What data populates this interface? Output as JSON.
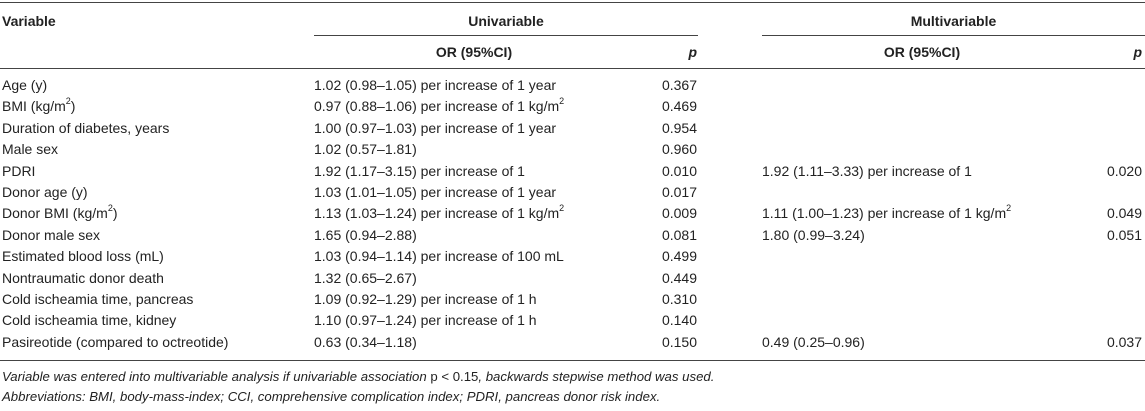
{
  "headers": {
    "variable": "Variable",
    "univariable": "Univariable",
    "multivariable": "Multivariable",
    "or_ci": "OR (95%CI)",
    "p": "p"
  },
  "rows": [
    {
      "variable": "Age (y)",
      "uni_or": "1.02 (0.98–1.05) per increase of 1 year",
      "uni_p": "0.367",
      "multi_or": "",
      "multi_p": ""
    },
    {
      "variable": "BMI (kg/m",
      "variable_sup": "2",
      "variable_after": ")",
      "uni_or": "0.97 (0.88–1.06) per increase of 1 kg/m",
      "uni_or_sup": "2",
      "uni_p": "0.469",
      "multi_or": "",
      "multi_p": ""
    },
    {
      "variable": "Duration of diabetes, years",
      "uni_or": "1.00 (0.97–1.03) per increase of 1 year",
      "uni_p": "0.954",
      "multi_or": "",
      "multi_p": ""
    },
    {
      "variable": "Male sex",
      "uni_or": "1.02 (0.57–1.81)",
      "uni_p": "0.960",
      "multi_or": "",
      "multi_p": ""
    },
    {
      "variable": "PDRI",
      "uni_or": "1.92 (1.17–3.15) per increase of 1",
      "uni_p": "0.010",
      "multi_or": "1.92 (1.11–3.33) per increase of 1",
      "multi_p": "0.020"
    },
    {
      "variable": "Donor age (y)",
      "uni_or": "1.03 (1.01–1.05) per increase of 1 year",
      "uni_p": "0.017",
      "multi_or": "",
      "multi_p": ""
    },
    {
      "variable": "Donor BMI (kg/m",
      "variable_sup": "2",
      "variable_after": ")",
      "uni_or": "1.13 (1.03–1.24) per increase of 1 kg/m",
      "uni_or_sup": "2",
      "uni_p": "0.009",
      "multi_or": "1.11 (1.00–1.23) per increase of 1 kg/m",
      "multi_or_sup": "2",
      "multi_p": "0.049"
    },
    {
      "variable": "Donor male sex",
      "uni_or": "1.65 (0.94–2.88)",
      "uni_p": "0.081",
      "multi_or": "1.80 (0.99–3.24)",
      "multi_p": "0.051"
    },
    {
      "variable": "Estimated blood loss (mL)",
      "uni_or": "1.03 (0.94–1.14) per increase of 100 mL",
      "uni_p": "0.499",
      "multi_or": "",
      "multi_p": ""
    },
    {
      "variable": "Nontraumatic donor death",
      "uni_or": "1.32 (0.65–2.67)",
      "uni_p": "0.449",
      "multi_or": "",
      "multi_p": ""
    },
    {
      "variable": "Cold ischeamia time, pancreas",
      "uni_or": "1.09 (0.92–1.29) per increase of 1 h",
      "uni_p": "0.310",
      "multi_or": "",
      "multi_p": ""
    },
    {
      "variable": "Cold ischeamia time, kidney",
      "uni_or": "1.10 (0.97–1.24) per increase of 1 h",
      "uni_p": "0.140",
      "multi_or": "",
      "multi_p": ""
    },
    {
      "variable": "Pasireotide (compared to octreotide)",
      "uni_or": "0.63 (0.34–1.18)",
      "uni_p": "0.150",
      "multi_or": "0.49 (0.25–0.96)",
      "multi_p": "0.037"
    }
  ],
  "footnotes": {
    "line1_a": "Variable was entered into multivariable analysis if univariable association ",
    "line1_p": "p < 0.15",
    "line1_b": ", backwards stepwise method was used.",
    "line2": "Abbreviations: BMI, body-mass-index; CCI, comprehensive complication index; PDRI, pancreas donor risk index."
  }
}
